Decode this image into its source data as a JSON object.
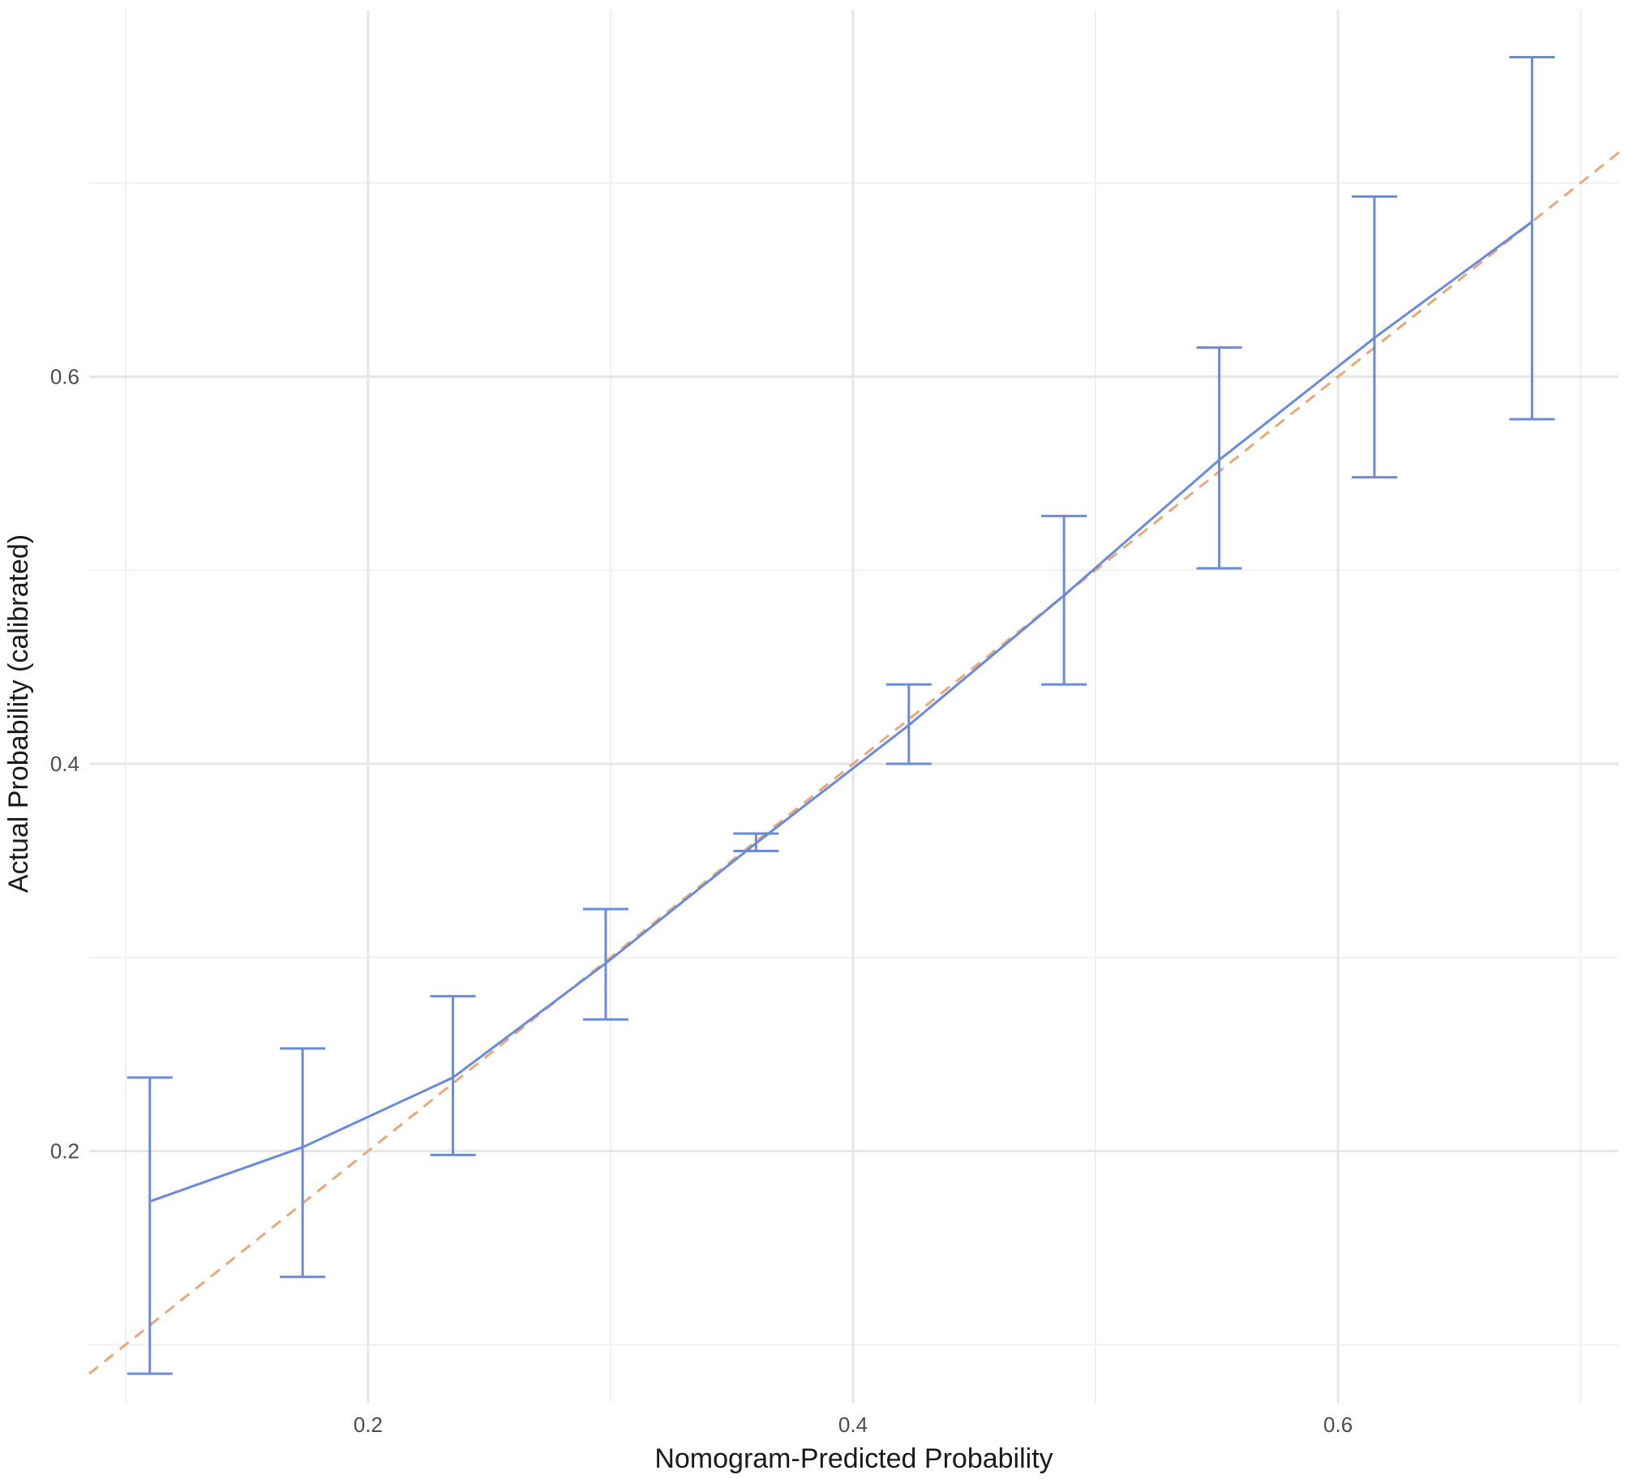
{
  "chart_data": {
    "type": "line",
    "title": "",
    "xlabel": "Nomogram-Predicted Probability",
    "ylabel": "Actual Probability (calibrated)",
    "xlim": [
      0.085,
      0.717
    ],
    "ylim": [
      0.07,
      0.7895
    ],
    "x_ticks": [
      0.2,
      0.4,
      0.6
    ],
    "x_tick_labels": [
      "0.2",
      "0.4",
      "0.6"
    ],
    "x_minor_gridlines": [
      0.1,
      0.3,
      0.5,
      0.7
    ],
    "y_ticks": [
      0.2,
      0.4,
      0.6
    ],
    "y_tick_labels": [
      "0.2",
      "0.4",
      "0.6"
    ],
    "y_minor_gridlines": [
      0.1,
      0.3,
      0.5,
      0.7
    ],
    "grid": true,
    "legend": "none",
    "series": [
      {
        "kind": "line-with-errorbars",
        "color": "#6a8bd9",
        "x": [
          0.11,
          0.173,
          0.235,
          0.298,
          0.36,
          0.423,
          0.487,
          0.551,
          0.615,
          0.68
        ],
        "y": [
          0.174,
          0.202,
          0.238,
          0.297,
          0.359,
          0.42,
          0.487,
          0.557,
          0.62,
          0.68
        ],
        "lower": [
          0.085,
          0.135,
          0.198,
          0.268,
          0.355,
          0.4,
          0.441,
          0.501,
          0.548,
          0.578
        ],
        "upper": [
          0.238,
          0.253,
          0.28,
          0.325,
          0.364,
          0.441,
          0.528,
          0.615,
          0.693,
          0.765
        ]
      },
      {
        "kind": "reference-line",
        "style": "dashed",
        "color": "#e8a878",
        "x": [
          0.085,
          0.717
        ],
        "y": [
          0.085,
          0.717
        ]
      }
    ]
  }
}
